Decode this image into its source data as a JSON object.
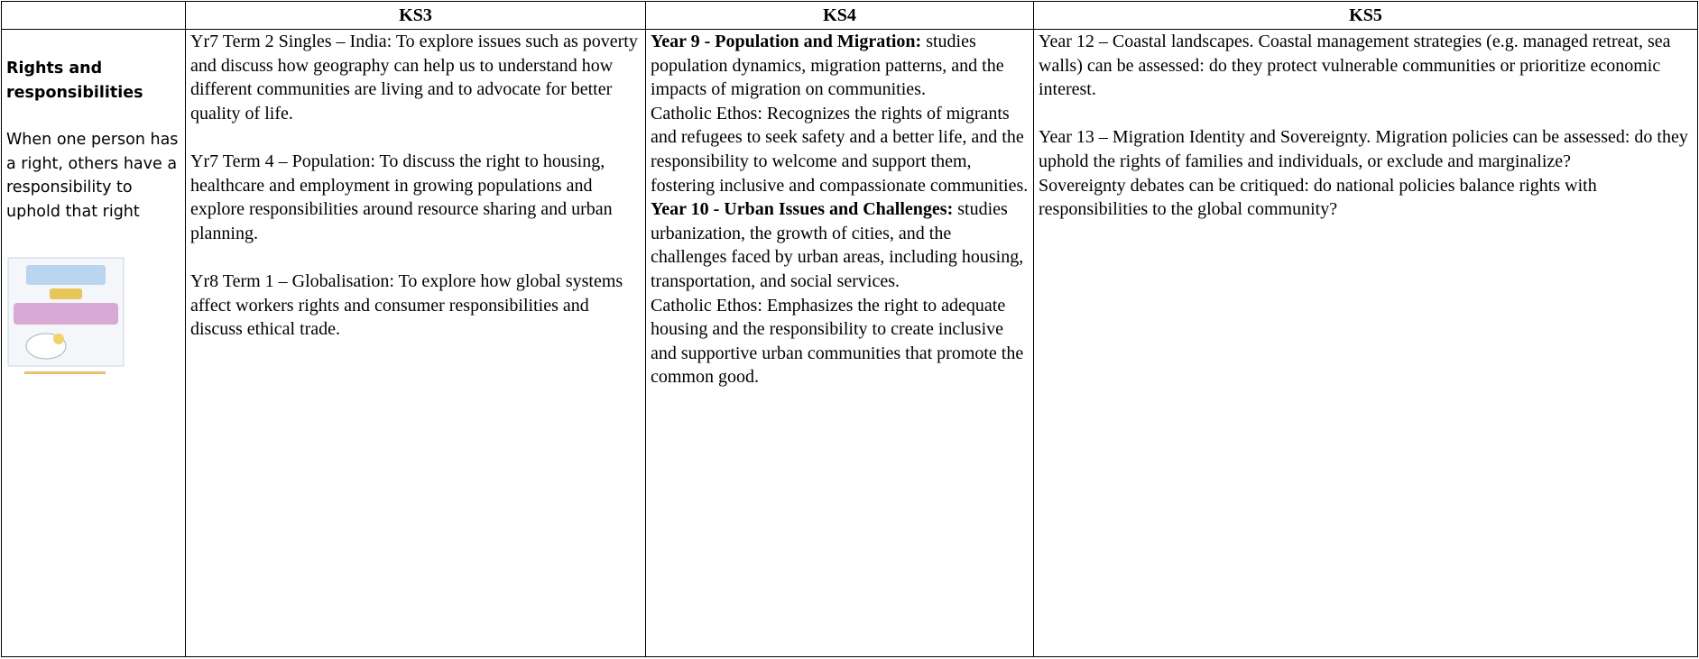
{
  "table": {
    "header": [
      "KS3",
      "KS4",
      "KS5"
    ],
    "row": {
      "topic": {
        "title": "Rights and responsibilities",
        "description": "When one person has a right, others have a responsibility to uphold that right"
      },
      "ks3": [
        "Yr7 Term 2 Singles – India: To explore issues such as poverty and discuss how geography can help us to understand how different communities are living and to advocate for better quality of life.",
        "Yr7 Term 4 – Population: To discuss the right to housing, healthcare and employment in growing populations and explore responsibilities around resource sharing and urban planning.",
        "Yr8 Term 1 – Globalisation: To explore how global systems affect workers rights and consumer responsibilities and discuss ethical trade."
      ],
      "ks4": [
        {
          "heading": "Year 9 - Population and Migration:",
          "text": " studies population dynamics, migration patterns, and the impacts of migration on communities.",
          "ethos": "Catholic Ethos: Recognizes the rights of migrants and refugees to seek safety and a better life, and the responsibility to welcome and support them, fostering inclusive and compassionate communities."
        },
        {
          "heading": "Year 10 - Urban Issues and Challenges:",
          "text": " studies urbanization, the growth of cities, and the challenges faced by urban areas, including housing, transportation, and social services.",
          "ethos": "Catholic Ethos: Emphasizes the right to adequate housing and the responsibility to create inclusive and supportive urban communities that promote the common good."
        }
      ],
      "ks5": [
        "Year 12 – Coastal landscapes. Coastal management strategies (e.g. managed retreat, sea walls) can be assessed: do they protect vulnerable communities or prioritize economic interest.",
        "Year 13 – Migration Identity and Sovereignty. Migration policies can be assessed: do they uphold the rights of families and individuals, or exclude and marginalize?",
        "Sovereignty debates can be critiqued: do national policies balance rights with responsibilities to the global community?"
      ]
    }
  }
}
